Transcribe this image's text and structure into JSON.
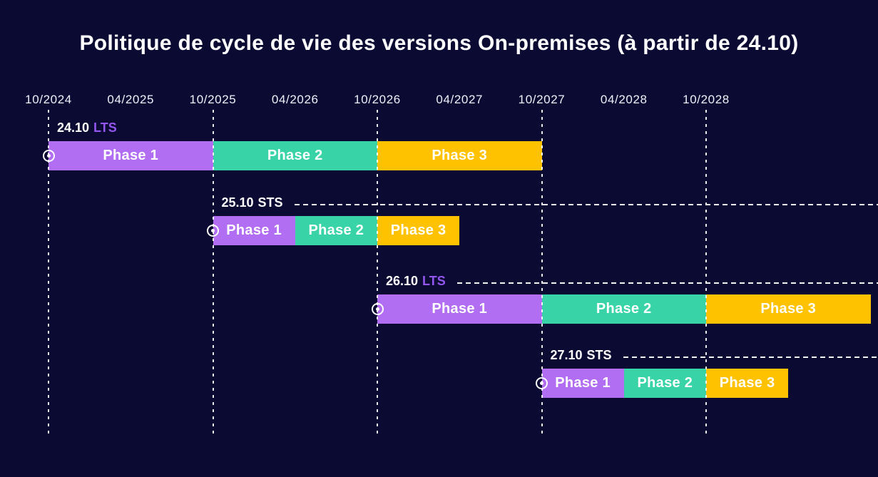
{
  "title": "Politique de cycle de vie des versions On-premises (à partir de 24.10)",
  "axis": {
    "ticks": [
      "10/2024",
      "04/2025",
      "10/2025",
      "04/2026",
      "10/2026",
      "04/2027",
      "10/2027",
      "04/2028",
      "10/2028"
    ],
    "gridlines": [
      "10/2024",
      "10/2025",
      "10/2026",
      "10/2027",
      "10/2028"
    ]
  },
  "colors": {
    "background": "#0b0a33",
    "phase1": "#b16ef3",
    "phase2": "#38d3a7",
    "phase3": "#ffc200",
    "lts_text": "#9356f0",
    "sts_text": "#ffffff",
    "title_text": "#ffffff",
    "axis_text": "#eef0fa",
    "line": "#ffffff"
  },
  "marker": {
    "name": "release-start-marker",
    "shape": "circled-dot"
  },
  "chart_data": {
    "type": "bar",
    "subtype": "gantt-timeline",
    "title": "Politique de cycle de vie des versions On-premises (à partir de 24.10)",
    "x_axis": {
      "unit": "MM/YYYY",
      "tick_interval_months": 6,
      "first_tick": "10/2024",
      "last_tick": "10/2028",
      "vertical_dashed_gridlines_at": [
        "10/2024",
        "10/2025",
        "10/2026",
        "10/2027",
        "10/2028"
      ]
    },
    "layout_hints": {
      "orientation": "horizontal",
      "background": "dark-navy",
      "grid": "vertical dashed lines at each October tick",
      "row_marker": "white circled dot at each release start",
      "trailing_dashed_line": "from version label to right edge for rows 2-4"
    },
    "rows": [
      {
        "version": "24.10",
        "channel": "LTS",
        "trail_line": false,
        "phases": [
          {
            "name": "Phase 1",
            "start": "10/2024",
            "end": "10/2025"
          },
          {
            "name": "Phase 2",
            "start": "10/2025",
            "end": "10/2026"
          },
          {
            "name": "Phase 3",
            "start": "10/2026",
            "end": "10/2027"
          }
        ]
      },
      {
        "version": "25.10",
        "channel": "STS",
        "trail_line": true,
        "phases": [
          {
            "name": "Phase 1",
            "start": "10/2025",
            "end": "04/2026"
          },
          {
            "name": "Phase 2",
            "start": "04/2026",
            "end": "10/2026"
          },
          {
            "name": "Phase 3",
            "start": "10/2026",
            "end": "04/2027"
          }
        ]
      },
      {
        "version": "26.10",
        "channel": "LTS",
        "trail_line": true,
        "phases": [
          {
            "name": "Phase 1",
            "start": "10/2026",
            "end": "10/2027"
          },
          {
            "name": "Phase 2",
            "start": "10/2027",
            "end": "10/2028"
          },
          {
            "name": "Phase 3",
            "start": "10/2028",
            "end": "10/2029"
          }
        ]
      },
      {
        "version": "27.10",
        "channel": "STS",
        "trail_line": true,
        "phases": [
          {
            "name": "Phase 1",
            "start": "10/2027",
            "end": "04/2028"
          },
          {
            "name": "Phase 2",
            "start": "04/2028",
            "end": "10/2028"
          },
          {
            "name": "Phase 3",
            "start": "10/2028",
            "end": "04/2029"
          }
        ]
      }
    ]
  }
}
